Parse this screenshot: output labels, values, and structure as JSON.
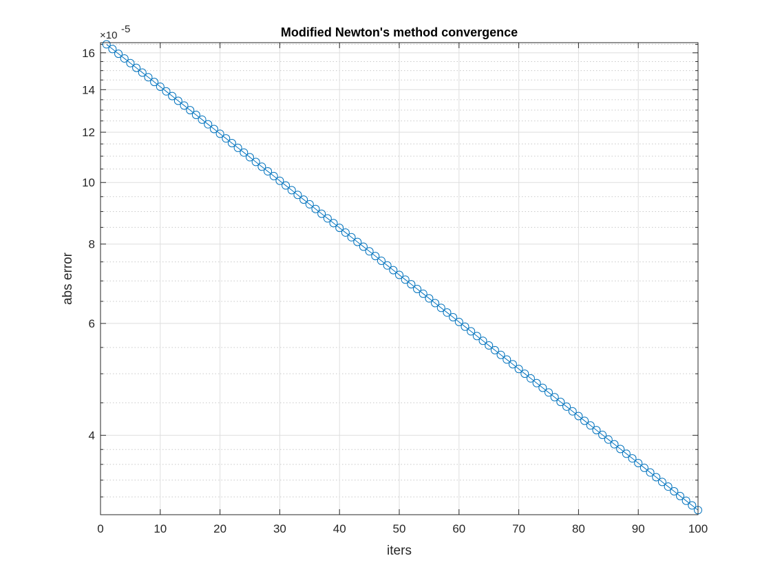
{
  "chart_data": {
    "type": "line",
    "title": "Modified Newton's method convergence",
    "xlabel": "iters",
    "ylabel": "abs error",
    "y_scale": "log",
    "y_exponent_label": "×10",
    "y_exponent_power": "-5",
    "xlim": [
      0,
      100
    ],
    "ylim": [
      3.0,
      16.6
    ],
    "x_ticks": [
      0,
      10,
      20,
      30,
      40,
      50,
      60,
      70,
      80,
      90,
      100
    ],
    "x_tick_labels": [
      "0",
      "10",
      "20",
      "30",
      "40",
      "50",
      "60",
      "70",
      "80",
      "90",
      "100"
    ],
    "y_ticks": [
      4,
      6,
      8,
      10,
      12,
      14,
      16
    ],
    "y_tick_labels": [
      "4",
      "6",
      "8",
      "10",
      "12",
      "14",
      "16"
    ],
    "y_minor_gridlines": [
      3.2,
      3.4,
      3.6,
      3.8,
      4.5,
      5,
      5.5,
      6.5,
      7,
      7.5,
      8.5,
      9,
      9.5,
      10.5,
      11,
      11.5,
      12.5,
      13,
      13.5,
      14.5,
      15,
      15.5,
      16.5
    ],
    "grid": true,
    "marker": "circle",
    "color": "#0072BD",
    "series": [
      {
        "x_start": 1,
        "x_end": 100,
        "y_start": 16.5,
        "y_end": 3.05
      }
    ]
  }
}
